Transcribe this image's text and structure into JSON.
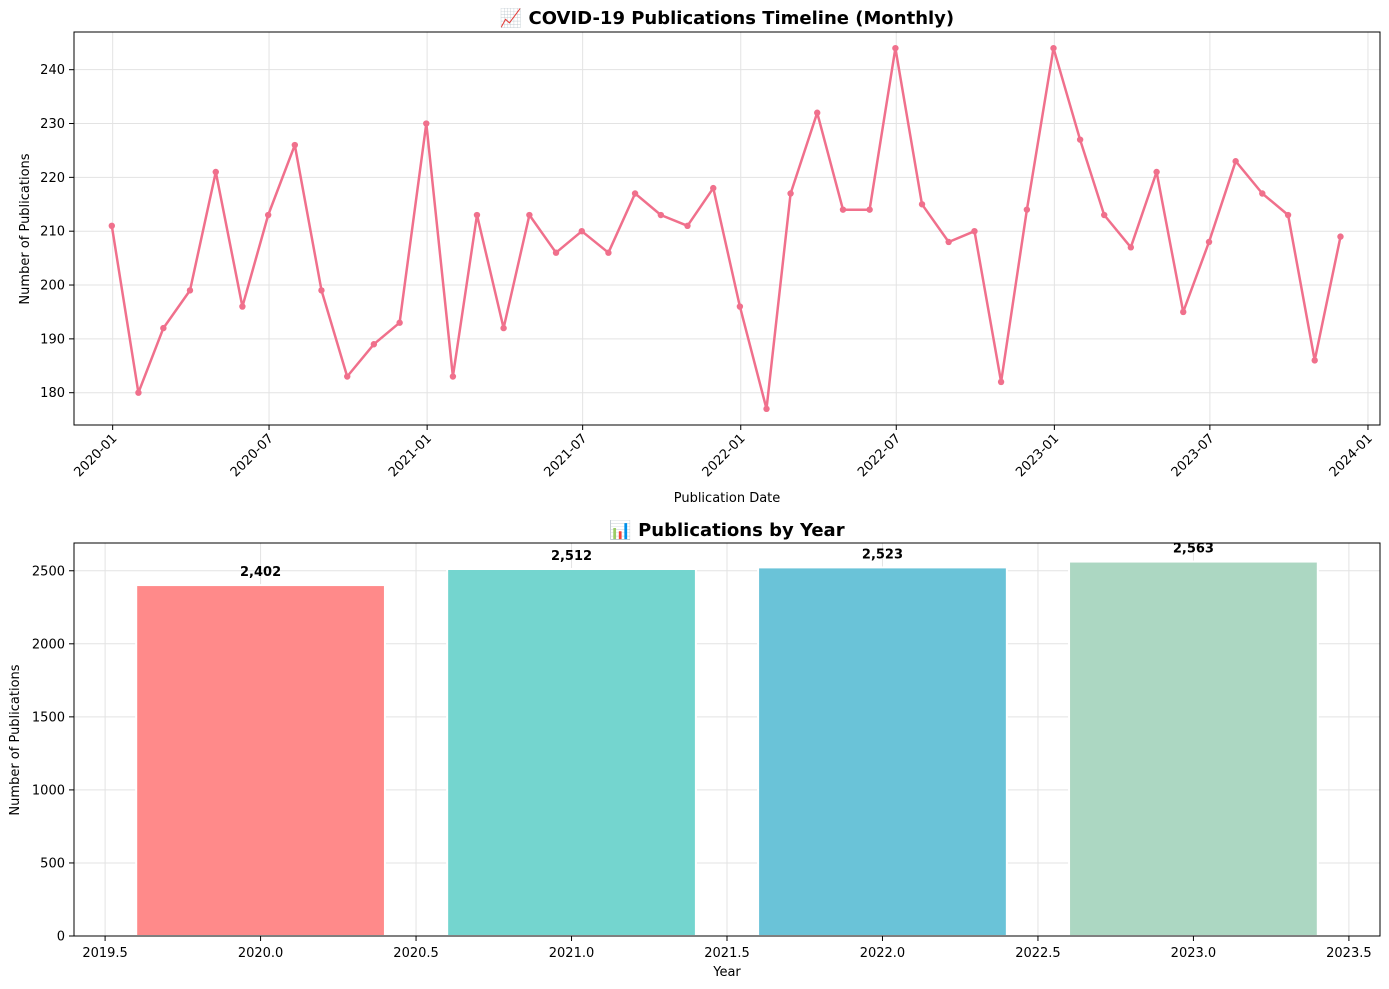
{
  "chart_data": [
    {
      "type": "line",
      "title": "📈 COVID-19 Publications Timeline (Monthly)",
      "xlabel": "Publication Date",
      "ylabel": "Number of Publications",
      "color": "#f0708c",
      "grid": true,
      "ylim": [
        174,
        247
      ],
      "xlim": [
        "2019-11-17",
        "2024-01-15"
      ],
      "x_ticks": [
        "2020-01",
        "2020-07",
        "2021-01",
        "2021-07",
        "2022-01",
        "2022-07",
        "2023-01",
        "2023-07",
        "2024-01"
      ],
      "y_ticks": [
        180,
        190,
        200,
        210,
        220,
        230,
        240
      ],
      "series": [
        {
          "x": [
            "2019-12-31",
            "2020-01-31",
            "2020-02-29",
            "2020-03-31",
            "2020-04-30",
            "2020-05-31",
            "2020-06-30",
            "2020-07-31",
            "2020-08-31",
            "2020-09-30",
            "2020-10-31",
            "2020-11-30",
            "2020-12-31",
            "2021-01-31",
            "2021-02-28",
            "2021-03-31",
            "2021-04-30",
            "2021-05-31",
            "2021-06-30",
            "2021-07-31",
            "2021-08-31",
            "2021-09-30",
            "2021-10-31",
            "2021-11-30",
            "2021-12-31",
            "2022-01-31",
            "2022-02-28",
            "2022-03-31",
            "2022-04-30",
            "2022-05-31",
            "2022-06-30",
            "2022-07-31",
            "2022-08-31",
            "2022-09-30",
            "2022-10-31",
            "2022-11-30",
            "2022-12-31",
            "2023-01-31",
            "2023-02-28",
            "2023-03-31",
            "2023-04-30",
            "2023-05-31",
            "2023-06-30",
            "2023-07-31",
            "2023-08-31",
            "2023-09-30",
            "2023-10-31",
            "2023-11-30"
          ],
          "values": [
            211,
            180,
            192,
            199,
            221,
            196,
            213,
            226,
            199,
            183,
            189,
            193,
            230,
            183,
            213,
            192,
            213,
            206,
            210,
            206,
            217,
            213,
            211,
            218,
            196,
            177,
            217,
            232,
            214,
            214,
            244,
            215,
            208,
            210,
            182,
            214,
            244,
            227,
            213,
            207,
            221,
            195,
            208,
            223,
            217,
            213,
            186,
            209
          ]
        }
      ]
    },
    {
      "type": "bar",
      "title": "📊 Publications by Year",
      "xlabel": "Year",
      "ylabel": "Number of Publications",
      "grid": true,
      "xlim": [
        2019.4,
        2023.6
      ],
      "ylim": [
        0,
        2690
      ],
      "x_ticks": [
        "2019.5",
        "2020.0",
        "2020.5",
        "2021.0",
        "2021.5",
        "2022.0",
        "2022.5",
        "2023.0",
        "2023.5"
      ],
      "y_ticks": [
        "0",
        "500",
        "1000",
        "1500",
        "2000",
        "2500"
      ],
      "categories": [
        2020,
        2021,
        2022,
        2023
      ],
      "values": [
        2402,
        2512,
        2523,
        2563
      ],
      "data_labels": [
        "2,402",
        "2,512",
        "2,523",
        "2,563"
      ],
      "colors": [
        "#ff8a8a",
        "#74d5cf",
        "#6ac3d8",
        "#acd7c2"
      ]
    }
  ]
}
